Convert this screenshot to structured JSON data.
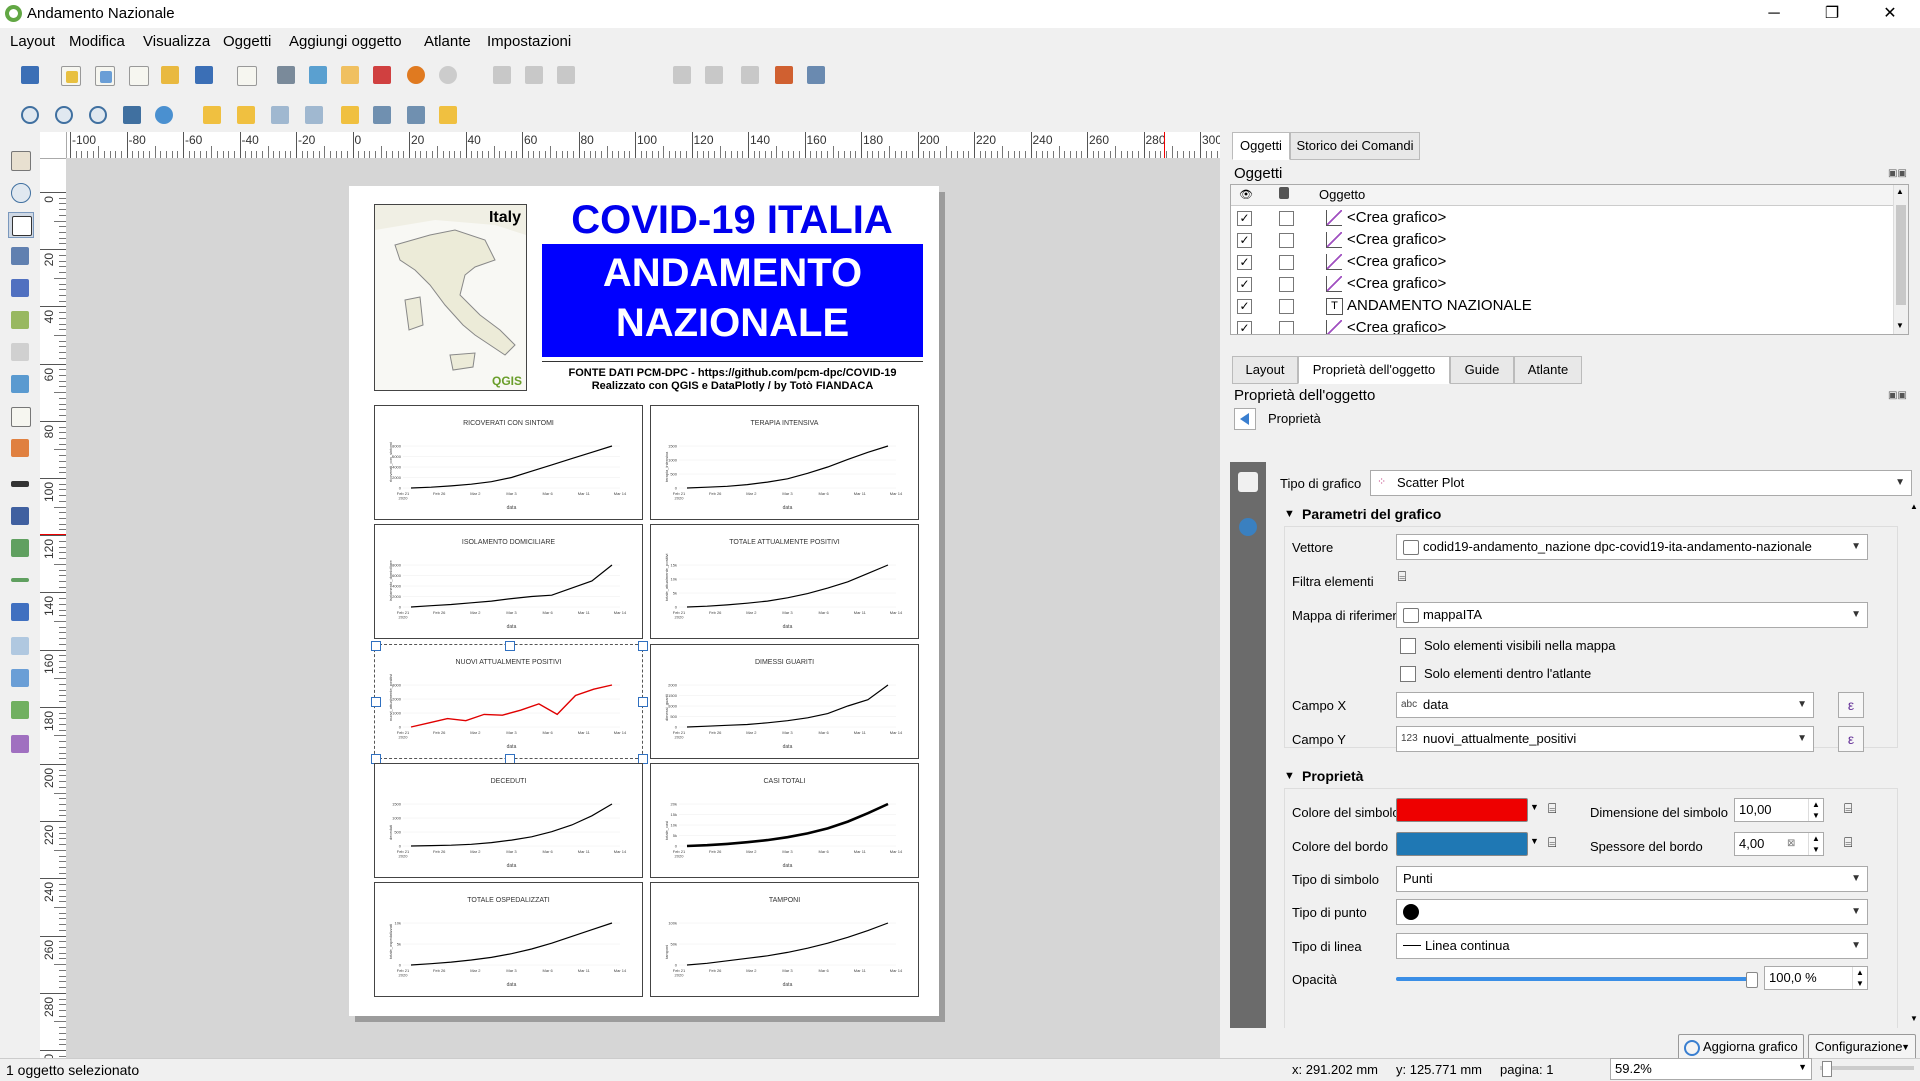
{
  "window": {
    "title": "Andamento Nazionale",
    "minimize": "─",
    "maximize": "❐",
    "close": "✕"
  },
  "menu": [
    "Layout",
    "Modifica",
    "Visualizza",
    "Oggetti",
    "Aggiungi oggetto",
    "Atlante",
    "Impostazioni"
  ],
  "toolbar": {
    "page_value": "1"
  },
  "rulers": {
    "h": [
      "-100",
      "-80",
      "-60",
      "-40",
      "-20",
      "0",
      "20",
      "40",
      "60",
      "80",
      "100",
      "120",
      "140",
      "160",
      "180",
      "200",
      "220",
      "240",
      "260",
      "280",
      "300"
    ],
    "v": [
      "0",
      "20",
      "40",
      "60",
      "80",
      "100",
      "120",
      "140",
      "160",
      "180",
      "200",
      "220",
      "240",
      "260",
      "280",
      "300"
    ]
  },
  "layout": {
    "map_label": "Italy",
    "map_logo": "QGIS",
    "title1": "COVID-19 ITALIA",
    "title2": "ANDAMENTO",
    "title3": "NAZIONALE",
    "source": "FONTE DATI PCM-DPC - https://github.com/pcm-dpc/COVID-19",
    "credits": "Realizzato con QGIS e DataPlotly / by Totò FIANDACA",
    "x_ticks": [
      "Feb 21\n2020",
      "Feb 26",
      "Mar 2",
      "Mar 3",
      "Mar 6",
      "Mar 11",
      "Mar 14"
    ],
    "xlabel": "data",
    "charts": [
      {
        "title": "RICOVERATI CON SINTOMI",
        "ylabel": "ricoverati_con_sintomi",
        "yticks": [
          "8000",
          "6000",
          "4000",
          "2000",
          "0"
        ],
        "values": [
          0.0,
          0.02,
          0.05,
          0.09,
          0.15,
          0.25,
          0.4,
          0.55,
          0.7,
          0.85,
          1.0
        ],
        "color": "#000000",
        "width": 1.2
      },
      {
        "title": "TERAPIA INTENSIVA",
        "ylabel": "terapia_intensiva",
        "yticks": [
          "1500",
          "1000",
          "500",
          "0"
        ],
        "values": [
          0.0,
          0.02,
          0.04,
          0.08,
          0.14,
          0.22,
          0.35,
          0.5,
          0.68,
          0.85,
          1.0
        ],
        "color": "#000000",
        "width": 1.2
      },
      {
        "title": "ISOLAMENTO DOMICILIARE",
        "ylabel": "isolamento_domiciliare",
        "yticks": [
          "8000",
          "6000",
          "4000",
          "2000",
          "0"
        ],
        "values": [
          0.0,
          0.03,
          0.06,
          0.1,
          0.14,
          0.2,
          0.25,
          0.28,
          0.45,
          0.62,
          1.0
        ],
        "color": "#000000",
        "width": 1.2
      },
      {
        "title": "TOTALE ATTUALMENTE POSITIVI",
        "ylabel": "totale_attualmente_positivi",
        "yticks": [
          "15k",
          "10k",
          "5k",
          "0"
        ],
        "values": [
          0.0,
          0.02,
          0.05,
          0.09,
          0.14,
          0.22,
          0.32,
          0.45,
          0.6,
          0.8,
          1.0
        ],
        "color": "#000000",
        "width": 1.2
      },
      {
        "title": "NUOVI ATTUALMENTE POSITIVI",
        "ylabel": "nuovi_attualmente_positivi",
        "yticks": [
          "3000",
          "2000",
          "1000",
          "0"
        ],
        "values": [
          0.0,
          0.1,
          0.2,
          0.15,
          0.3,
          0.28,
          0.4,
          0.55,
          0.3,
          0.75,
          0.9,
          1.0
        ],
        "color": "#e00000",
        "width": 1.4
      },
      {
        "title": "DIMESSI GUARITI",
        "ylabel": "dimessi_guariti",
        "yticks": [
          "2000",
          "1500",
          "1000",
          "500",
          "0"
        ],
        "values": [
          0.0,
          0.02,
          0.04,
          0.06,
          0.1,
          0.15,
          0.22,
          0.32,
          0.5,
          0.65,
          1.0
        ],
        "color": "#000000",
        "width": 1.2
      },
      {
        "title": "DECEDUTI",
        "ylabel": "deceduti",
        "yticks": [
          "1500",
          "1000",
          "500",
          "0"
        ],
        "values": [
          0.0,
          0.01,
          0.02,
          0.04,
          0.08,
          0.14,
          0.22,
          0.34,
          0.5,
          0.72,
          1.0
        ],
        "color": "#000000",
        "width": 1.2
      },
      {
        "title": "CASI TOTALI",
        "ylabel": "totale_casi",
        "yticks": [
          "20k",
          "15k",
          "10k",
          "5k",
          "0"
        ],
        "values": [
          0.0,
          0.02,
          0.05,
          0.09,
          0.14,
          0.21,
          0.3,
          0.42,
          0.58,
          0.78,
          1.0
        ],
        "color": "#000000",
        "width": 2.6
      },
      {
        "title": "TOTALE OSPEDALIZZATI",
        "ylabel": "totale_ospedalizzati",
        "yticks": [
          "10k",
          "5k",
          "0"
        ],
        "values": [
          0.0,
          0.03,
          0.07,
          0.12,
          0.18,
          0.27,
          0.38,
          0.52,
          0.68,
          0.84,
          1.0
        ],
        "color": "#000000",
        "width": 1.2
      },
      {
        "title": "TAMPONI",
        "ylabel": "tamponi",
        "yticks": [
          "100k",
          "50k",
          "0"
        ],
        "values": [
          0.0,
          0.04,
          0.1,
          0.16,
          0.22,
          0.3,
          0.4,
          0.52,
          0.66,
          0.82,
          1.0
        ],
        "color": "#000000",
        "width": 1.2
      }
    ]
  },
  "right_panel": {
    "top_tabs": [
      "Oggetti",
      "Storico dei Comandi"
    ],
    "items_title": "Oggetti",
    "items_header": "Oggetto",
    "items": [
      {
        "name": "<Crea grafico>",
        "type": "chart"
      },
      {
        "name": "<Crea grafico>",
        "type": "chart"
      },
      {
        "name": "<Crea grafico>",
        "type": "chart"
      },
      {
        "name": "<Crea grafico>",
        "type": "chart"
      },
      {
        "name": "ANDAMENTO NAZIONALE",
        "type": "text"
      },
      {
        "name": "<Crea grafico>",
        "type": "chart"
      }
    ],
    "bottom_tabs": [
      "Layout",
      "Proprietà dell'oggetto",
      "Guide",
      "Atlante"
    ],
    "props_title": "Proprietà dell'oggetto",
    "props_back": "Proprietà",
    "chart_type_label": "Tipo di grafico",
    "chart_type_value": "Scatter Plot",
    "section_params": "Parametri del grafico",
    "vettore_label": "Vettore",
    "vettore_value": "codid19-andamento_nazione dpc-covid19-ita-andamento-nazionale",
    "filtra_label": "Filtra elementi",
    "mappa_label": "Mappa di riferimento",
    "mappa_value": "mappaITA",
    "chk1": "Solo elementi visibili nella mappa",
    "chk2": "Solo elementi dentro l'atlante",
    "campox_label": "Campo X",
    "campox_type": "abc",
    "campox_value": "data",
    "campoy_label": "Campo Y",
    "campoy_type": "123",
    "campoy_value": "nuovi_attualmente_positivi",
    "section_props": "Proprietà",
    "colore_simbolo_label": "Colore del simbolo",
    "colore_simbolo": "#ee0000",
    "dimensione_label": "Dimensione del simbolo",
    "dimensione_value": "10,00",
    "colore_bordo_label": "Colore del bordo",
    "colore_bordo": "#1f78b4",
    "spessore_label": "Spessore del bordo",
    "spessore_value": "4,00",
    "tipo_simbolo_label": "Tipo di simbolo",
    "tipo_simbolo_value": "Punti",
    "tipo_punto_label": "Tipo di punto",
    "tipo_linea_label": "Tipo di linea",
    "tipo_linea_value": "Linea continua",
    "opacita_label": "Opacità",
    "opacita_value": "100,0 %",
    "opacity_fraction": 1.0,
    "aggiorna_btn": "Aggiorna grafico",
    "config_btn": "Configurazione"
  },
  "status": {
    "left": "1 oggetto selezionato",
    "x": "x: 291.202 mm",
    "y": "y: 125.771 mm",
    "page": "pagina: 1",
    "zoom": "59.2%"
  }
}
